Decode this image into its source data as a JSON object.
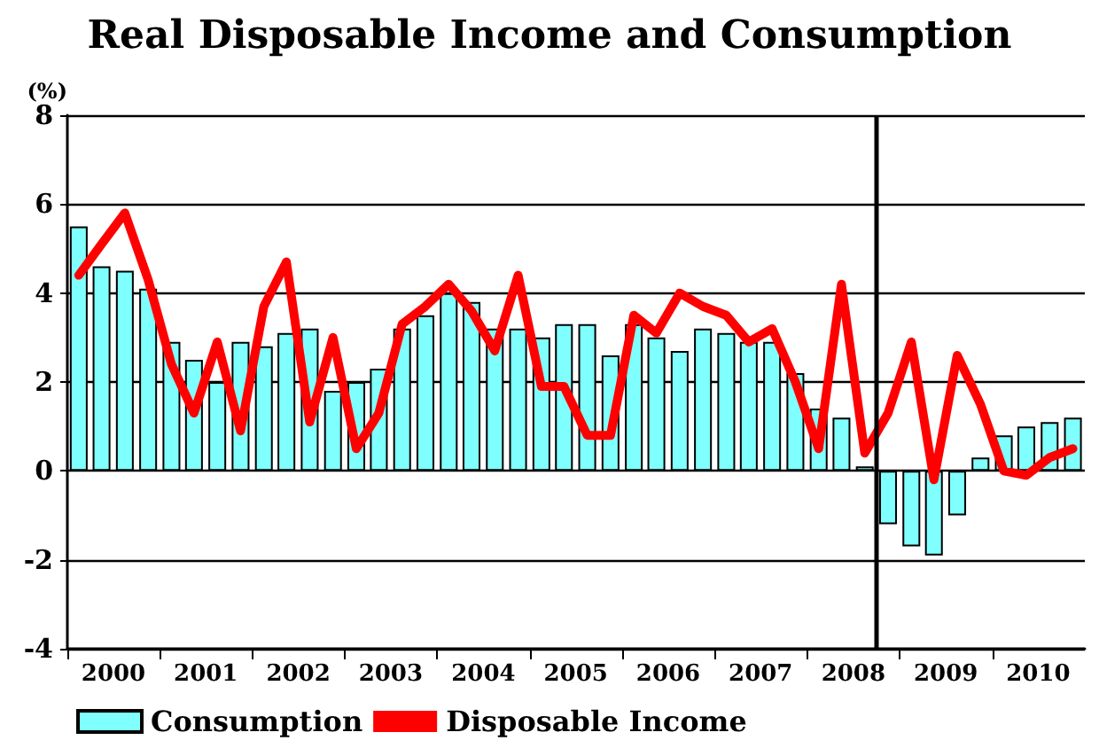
{
  "chart_data": {
    "type": "bar",
    "title": "Real Disposable Income and Consumption",
    "ylabel": "(%)",
    "x": [
      "2000-02-15",
      "2000-05-15",
      "2000-08-15",
      "2000-11-15",
      "2001-02-15",
      "2001-05-15",
      "2001-08-15",
      "2001-11-15",
      "2002-02-15",
      "2002-05-15",
      "2002-08-15",
      "2002-11-15",
      "2003-02-15",
      "2003-05-15",
      "2003-08-15",
      "2003-11-15",
      "2004-02-15",
      "2004-05-15",
      "2004-08-15",
      "2004-11-15",
      "2005-02-15",
      "2005-05-15",
      "2005-08-15",
      "2005-11-15",
      "2006-02-15",
      "2006-05-15",
      "2006-08-15",
      "2006-11-15",
      "2007-02-15",
      "2007-05-15",
      "2007-08-15",
      "2007-11-15",
      "2008-02-15",
      "2008-05-15",
      "2008-08-15",
      "2008-11-15",
      "2009-02-15",
      "2009-05-15",
      "2009-08-15",
      "2009-11-15",
      "2010-02-15",
      "2010-05-15",
      "2010-08-15",
      "2010-11-15"
    ],
    "series": [
      {
        "name": "Consumption",
        "color": "#80ffff",
        "values": [
          5.5,
          4.6,
          4.5,
          4.1,
          2.9,
          2.5,
          2.0,
          2.9,
          2.8,
          3.1,
          3.2,
          1.8,
          2.0,
          2.3,
          3.2,
          3.5,
          4.0,
          3.8,
          3.2,
          3.2,
          3.0,
          3.3,
          3.3,
          2.6,
          3.3,
          3.0,
          2.7,
          3.2,
          3.1,
          2.9,
          2.9,
          2.2,
          1.4,
          1.2,
          0.1,
          -1.2,
          -1.7,
          -1.9,
          -1.0,
          0.3,
          0.8,
          1.0,
          1.1,
          1.2
        ]
      },
      {
        "name": "Disposable Income",
        "type": "line",
        "color": "#ff0000",
        "values": [
          4.4,
          5.1,
          5.8,
          4.3,
          2.4,
          1.3,
          2.9,
          0.9,
          3.7,
          4.7,
          1.1,
          3.0,
          0.5,
          1.3,
          3.3,
          3.7,
          4.2,
          3.6,
          2.7,
          4.4,
          1.9,
          1.9,
          0.8,
          0.8,
          3.5,
          3.1,
          4.0,
          3.7,
          3.5,
          2.9,
          3.2,
          2.0,
          0.5,
          4.2,
          0.4,
          1.3,
          2.9,
          -0.2,
          2.6,
          1.5,
          0.0,
          -0.1,
          0.3,
          0.5
        ]
      }
    ],
    "xlim": [
      "2000-01-01",
      "2011-01-01"
    ],
    "xticks": [
      {
        "value": "2000-01-01",
        "label": null
      },
      {
        "value": "2000-07-01",
        "label": "2000"
      },
      {
        "value": "2001-01-01",
        "label": null
      },
      {
        "value": "2001-07-01",
        "label": "2001"
      },
      {
        "value": "2002-01-01",
        "label": null
      },
      {
        "value": "2002-07-01",
        "label": "2002"
      },
      {
        "value": "2003-01-01",
        "label": null
      },
      {
        "value": "2003-07-01",
        "label": "2003"
      },
      {
        "value": "2004-01-01",
        "label": null
      },
      {
        "value": "2004-07-01",
        "label": "2004"
      },
      {
        "value": "2005-01-01",
        "label": null
      },
      {
        "value": "2005-07-01",
        "label": "2005"
      },
      {
        "value": "2006-01-01",
        "label": null
      },
      {
        "value": "2006-07-01",
        "label": "2006"
      },
      {
        "value": "2007-01-01",
        "label": null
      },
      {
        "value": "2007-07-01",
        "label": "2007"
      },
      {
        "value": "2008-01-01",
        "label": null
      },
      {
        "value": "2008-07-01",
        "label": "2008"
      },
      {
        "value": "2009-01-01",
        "label": null
      },
      {
        "value": "2009-07-01",
        "label": "2009"
      },
      {
        "value": "2010-01-01",
        "label": null
      },
      {
        "value": "2010-07-01",
        "label": "2010"
      }
    ],
    "ylim": [
      -4,
      8
    ],
    "yticks": [
      -4,
      -2,
      0,
      2,
      4,
      6,
      8
    ],
    "ref_lines": [
      {
        "axis": "x",
        "value": "2008-10-01",
        "color": "#000000"
      }
    ],
    "grid": "y",
    "legend": "bottom left",
    "line_style": "solid",
    "marker": "none"
  }
}
